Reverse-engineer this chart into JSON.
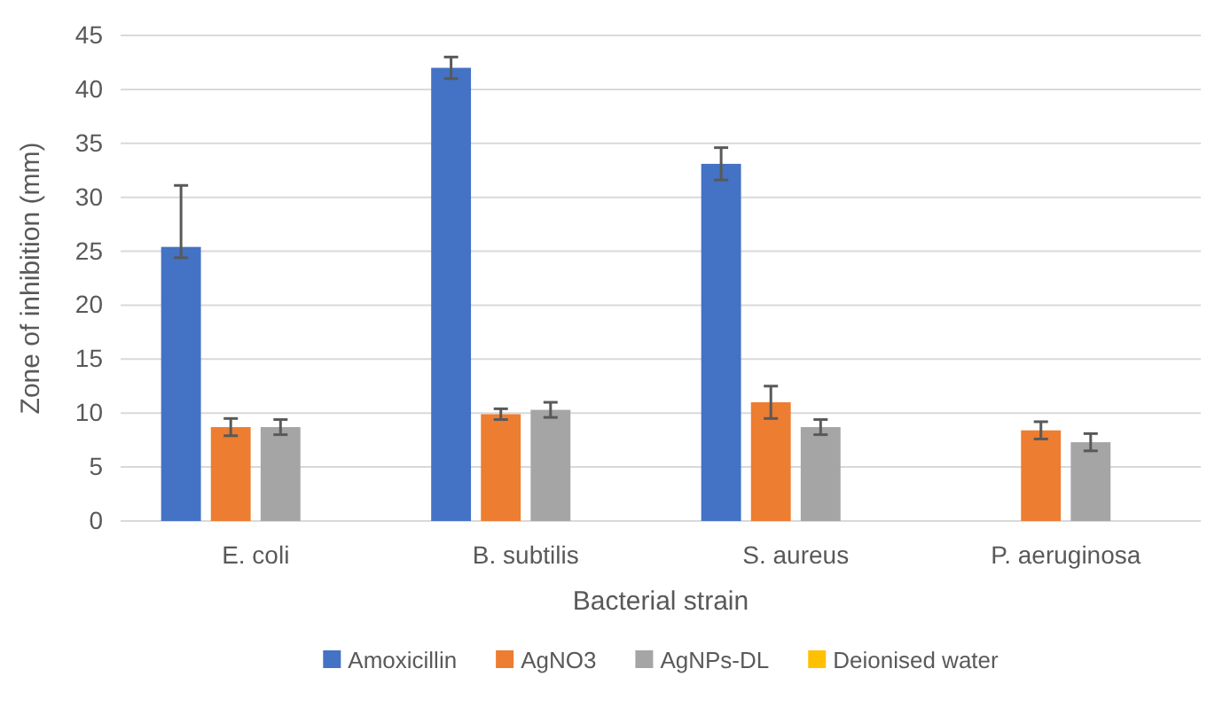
{
  "chart_data": {
    "type": "bar",
    "xlabel": "Bacterial strain",
    "ylabel": "Zone of inhibition (mm)",
    "categories": [
      "E. coli",
      "B. subtilis",
      "S. aureus",
      "P. aeruginosa"
    ],
    "series": [
      {
        "name": "Amoxicillin",
        "color": "#4472c4",
        "values": [
          25.4,
          42.0,
          33.1,
          0
        ],
        "errors": [
          [
            24.4,
            31.1
          ],
          1.0,
          1.5,
          null
        ]
      },
      {
        "name": "AgNO3",
        "color": "#ed7d31",
        "values": [
          8.7,
          9.9,
          11.0,
          8.4
        ],
        "errors": [
          0.8,
          0.5,
          1.5,
          0.8
        ]
      },
      {
        "name": "AgNPs-DL",
        "color": "#a5a5a5",
        "values": [
          8.7,
          10.3,
          8.7,
          7.3
        ],
        "errors": [
          0.7,
          0.7,
          0.7,
          0.8
        ]
      },
      {
        "name": "Deionised water",
        "color": "#ffc000",
        "values": [
          0,
          0,
          0,
          0
        ]
      }
    ],
    "ylim": [
      0,
      45
    ],
    "yticks": [
      0,
      5,
      10,
      15,
      20,
      25,
      30,
      35,
      40,
      45
    ],
    "grid": "y",
    "legend": "bottom"
  }
}
